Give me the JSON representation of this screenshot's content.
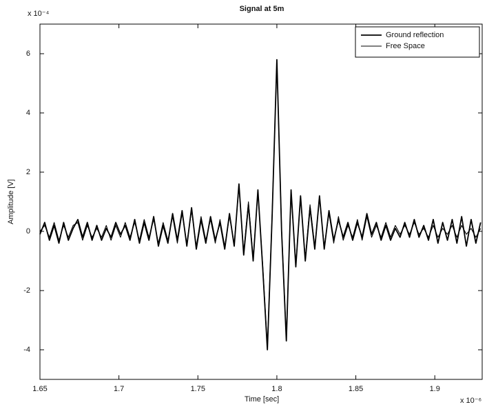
{
  "chart_data": {
    "type": "line",
    "title": "Signal at 5m",
    "x_label": "Time [sec]",
    "y_label": "Amplitude [V]",
    "x_multiplier": "x 10⁻⁶",
    "y_multiplier": "x 10⁻⁴",
    "x": [
      1.65,
      1.653,
      1.656,
      1.659,
      1.662,
      1.665,
      1.668,
      1.671,
      1.674,
      1.677,
      1.68,
      1.683,
      1.686,
      1.689,
      1.692,
      1.695,
      1.698,
      1.701,
      1.704,
      1.707,
      1.71,
      1.713,
      1.716,
      1.719,
      1.722,
      1.725,
      1.728,
      1.731,
      1.734,
      1.737,
      1.74,
      1.743,
      1.746,
      1.749,
      1.752,
      1.755,
      1.758,
      1.761,
      1.764,
      1.767,
      1.77,
      1.773,
      1.776,
      1.779,
      1.782,
      1.785,
      1.788,
      1.791,
      1.794,
      1.797,
      1.8,
      1.803,
      1.806,
      1.809,
      1.812,
      1.815,
      1.818,
      1.821,
      1.824,
      1.827,
      1.83,
      1.833,
      1.836,
      1.839,
      1.842,
      1.845,
      1.848,
      1.851,
      1.854,
      1.857,
      1.86,
      1.863,
      1.866,
      1.869,
      1.872,
      1.875,
      1.878,
      1.881,
      1.884,
      1.887,
      1.89,
      1.893,
      1.896,
      1.899,
      1.902,
      1.905,
      1.908,
      1.911,
      1.914,
      1.917,
      1.92,
      1.923,
      1.926,
      1.929
    ],
    "series": [
      {
        "name": "Ground reflection",
        "color": "#000000",
        "values": [
          -0.1,
          0.3,
          -0.3,
          0.2,
          -0.4,
          0.3,
          -0.3,
          0.1,
          0.4,
          -0.2,
          0.3,
          -0.3,
          0.2,
          -0.3,
          0.1,
          -0.2,
          0.3,
          -0.1,
          0.2,
          -0.3,
          0.4,
          -0.4,
          0.3,
          -0.3,
          0.5,
          -0.5,
          0.2,
          -0.4,
          0.6,
          -0.3,
          0.7,
          -0.5,
          0.8,
          -0.6,
          0.4,
          -0.4,
          0.5,
          -0.3,
          0.3,
          -0.6,
          0.6,
          -0.5,
          1.6,
          -0.8,
          0.9,
          -1.0,
          1.4,
          -1.2,
          -4.0,
          0.5,
          5.8,
          0.0,
          -3.7,
          1.4,
          -1.2,
          1.2,
          -1.0,
          0.8,
          -0.6,
          1.2,
          -0.6,
          0.7,
          -0.3,
          0.4,
          -0.2,
          0.3,
          -0.3,
          0.3,
          -0.2,
          0.6,
          -0.1,
          0.3,
          -0.3,
          0.2,
          -0.3,
          0.1,
          -0.2,
          0.3,
          -0.2,
          0.4,
          -0.2,
          0.2,
          -0.3,
          0.4,
          -0.4,
          0.3,
          -0.3,
          0.4,
          -0.4,
          0.5,
          -0.5,
          0.4,
          -0.4,
          0.3
        ]
      },
      {
        "name": "Free Space",
        "color": "#000000",
        "values": [
          0.0,
          0.2,
          -0.2,
          0.3,
          -0.3,
          0.2,
          -0.2,
          0.2,
          0.3,
          -0.3,
          0.2,
          -0.2,
          0.1,
          -0.2,
          0.2,
          -0.3,
          0.2,
          -0.2,
          0.3,
          -0.2,
          0.3,
          -0.3,
          0.4,
          -0.2,
          0.4,
          -0.4,
          0.3,
          -0.3,
          0.5,
          -0.4,
          0.6,
          -0.4,
          0.7,
          -0.5,
          0.5,
          -0.3,
          0.4,
          -0.4,
          0.4,
          -0.5,
          0.5,
          -0.4,
          1.5,
          -0.7,
          1.0,
          -0.9,
          1.3,
          -1.1,
          -3.9,
          0.6,
          5.7,
          0.1,
          -3.6,
          1.3,
          -1.1,
          1.1,
          -0.9,
          0.9,
          -0.5,
          1.1,
          -0.5,
          0.6,
          -0.4,
          0.5,
          -0.3,
          0.2,
          -0.2,
          0.4,
          -0.3,
          0.5,
          -0.2,
          0.2,
          -0.2,
          0.3,
          -0.2,
          0.2,
          -0.1,
          0.2,
          -0.1,
          0.3,
          -0.1,
          0.1,
          -0.2,
          0.2,
          -0.2,
          0.1,
          -0.1,
          0.2,
          -0.2,
          0.2,
          -0.1,
          0.1,
          -0.2,
          0.1
        ]
      }
    ],
    "xlim": [
      1.65,
      1.93
    ],
    "ylim": [
      -5,
      7
    ],
    "xticks": [
      1.65,
      1.7,
      1.75,
      1.8,
      1.85,
      1.9
    ],
    "yticks": [
      -4,
      -2,
      0,
      2,
      4,
      6
    ],
    "grid": false,
    "legend": "upper-right"
  }
}
